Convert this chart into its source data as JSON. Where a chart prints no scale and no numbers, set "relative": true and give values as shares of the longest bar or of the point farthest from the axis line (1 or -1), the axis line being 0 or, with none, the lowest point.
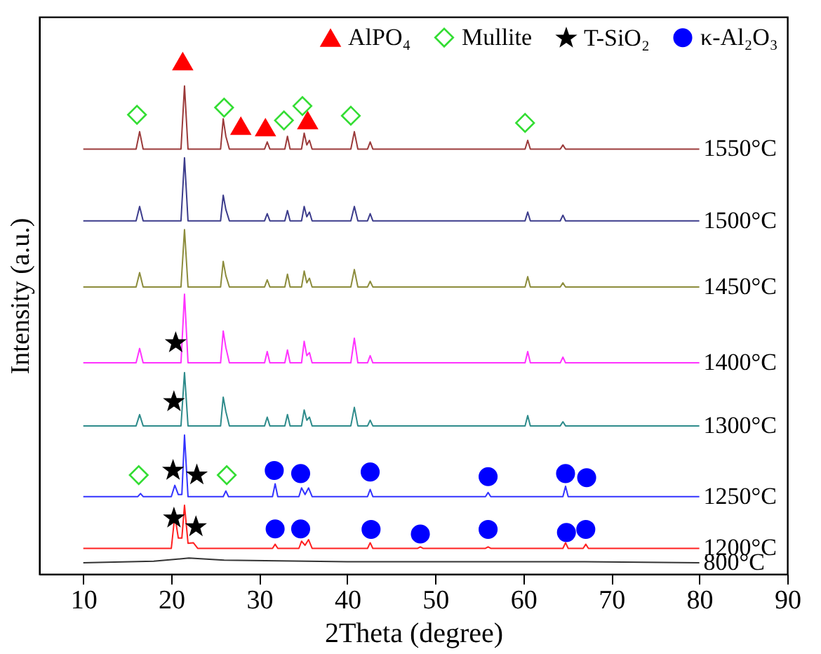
{
  "chart_data": {
    "type": "line",
    "relative": true,
    "xlabel": "2Theta (degree)",
    "ylabel": "Intensity (a.u.)",
    "xlim": [
      5,
      90
    ],
    "xticks": [
      10,
      20,
      30,
      40,
      50,
      60,
      70,
      80,
      90
    ],
    "grid": false,
    "legend": "top right",
    "line_style": "solid",
    "series": [
      {
        "name": "1550°C",
        "type": "line",
        "color": "#9b3a3a",
        "x": [
          10,
          16.0,
          16.4,
          16.8,
          21.1,
          21.5,
          21.9,
          25.6,
          25.9,
          26.2,
          26.6,
          30.6,
          30.9,
          31.2,
          32.9,
          33.2,
          33.5,
          34.8,
          35.1,
          35.4,
          35.7,
          36.0,
          40.4,
          40.8,
          41.2,
          42.3,
          42.6,
          42.9,
          60.2,
          60.5,
          60.8,
          64.2,
          64.5,
          64.8,
          80
        ],
        "values": [
          0.829,
          0.829,
          0.863,
          0.829,
          0.829,
          0.952,
          0.829,
          0.829,
          0.888,
          0.854,
          0.829,
          0.829,
          0.843,
          0.829,
          0.829,
          0.854,
          0.829,
          0.829,
          0.86,
          0.837,
          0.846,
          0.829,
          0.829,
          0.863,
          0.829,
          0.829,
          0.843,
          0.829,
          0.829,
          0.846,
          0.829,
          0.829,
          0.837,
          0.829,
          0.829
        ]
      },
      {
        "name": "1500°C",
        "type": "line",
        "color": "#3c3c8c",
        "x": [
          10,
          16.0,
          16.4,
          16.8,
          21.1,
          21.5,
          21.9,
          25.6,
          25.9,
          26.2,
          26.6,
          30.6,
          30.9,
          31.2,
          32.9,
          33.2,
          33.5,
          34.8,
          35.1,
          35.4,
          35.7,
          36.0,
          40.4,
          40.8,
          41.2,
          42.3,
          42.6,
          42.9,
          60.2,
          60.5,
          60.8,
          64.2,
          64.5,
          64.8,
          80
        ],
        "values": [
          0.689,
          0.689,
          0.717,
          0.689,
          0.689,
          0.812,
          0.689,
          0.689,
          0.739,
          0.711,
          0.689,
          0.689,
          0.703,
          0.689,
          0.689,
          0.709,
          0.689,
          0.689,
          0.717,
          0.697,
          0.706,
          0.689,
          0.689,
          0.717,
          0.689,
          0.689,
          0.703,
          0.689,
          0.689,
          0.706,
          0.689,
          0.689,
          0.7,
          0.689,
          0.689
        ]
      },
      {
        "name": "1450°C",
        "type": "line",
        "color": "#8c8c3c",
        "x": [
          10,
          16.0,
          16.4,
          16.8,
          21.1,
          21.5,
          21.9,
          25.6,
          25.9,
          26.2,
          26.6,
          30.6,
          30.9,
          31.2,
          32.9,
          33.2,
          33.5,
          34.8,
          35.1,
          35.4,
          35.7,
          36.0,
          40.4,
          40.8,
          41.2,
          42.3,
          42.6,
          42.9,
          60.2,
          60.5,
          60.8,
          64.2,
          64.5,
          64.8,
          80
        ],
        "values": [
          0.56,
          0.56,
          0.588,
          0.56,
          0.56,
          0.672,
          0.56,
          0.56,
          0.61,
          0.582,
          0.56,
          0.56,
          0.574,
          0.56,
          0.56,
          0.585,
          0.56,
          0.56,
          0.591,
          0.568,
          0.577,
          0.56,
          0.56,
          0.594,
          0.56,
          0.56,
          0.571,
          0.56,
          0.56,
          0.58,
          0.56,
          0.56,
          0.568,
          0.56,
          0.56
        ]
      },
      {
        "name": "1400°C",
        "type": "line",
        "color": "#ff33ff",
        "x": [
          10,
          16.0,
          16.4,
          16.8,
          21.1,
          21.5,
          21.9,
          25.6,
          25.9,
          26.2,
          26.6,
          30.6,
          30.9,
          31.2,
          32.9,
          33.2,
          33.5,
          34.8,
          35.1,
          35.4,
          35.7,
          36.0,
          40.4,
          40.8,
          41.2,
          42.3,
          42.6,
          42.9,
          60.2,
          60.5,
          60.8,
          64.2,
          64.5,
          64.8,
          80
        ],
        "values": [
          0.412,
          0.412,
          0.44,
          0.412,
          0.412,
          0.546,
          0.412,
          0.412,
          0.474,
          0.442,
          0.412,
          0.412,
          0.434,
          0.412,
          0.412,
          0.437,
          0.412,
          0.412,
          0.454,
          0.426,
          0.432,
          0.412,
          0.412,
          0.46,
          0.412,
          0.412,
          0.426,
          0.412,
          0.412,
          0.434,
          0.412,
          0.412,
          0.423,
          0.412,
          0.412
        ]
      },
      {
        "name": "1300°C",
        "type": "line",
        "color": "#2e8b8b",
        "x": [
          10,
          16.0,
          16.4,
          16.8,
          21.1,
          21.5,
          21.9,
          25.6,
          25.9,
          26.2,
          26.6,
          30.6,
          30.9,
          31.2,
          32.9,
          33.2,
          33.5,
          34.8,
          35.1,
          35.4,
          35.7,
          36.0,
          40.4,
          40.8,
          41.2,
          42.3,
          42.6,
          42.9,
          60.2,
          60.5,
          60.8,
          64.2,
          64.5,
          64.8,
          80
        ],
        "values": [
          0.289,
          0.289,
          0.311,
          0.289,
          0.289,
          0.393,
          0.289,
          0.289,
          0.345,
          0.317,
          0.289,
          0.289,
          0.306,
          0.289,
          0.289,
          0.311,
          0.289,
          0.289,
          0.32,
          0.3,
          0.306,
          0.289,
          0.289,
          0.325,
          0.289,
          0.289,
          0.3,
          0.289,
          0.289,
          0.309,
          0.289,
          0.289,
          0.297,
          0.289,
          0.289
        ]
      },
      {
        "name": "1250°C",
        "type": "line",
        "color": "#3333ff",
        "x": [
          10,
          16.2,
          16.5,
          16.8,
          20.0,
          20.4,
          20.8,
          21.2,
          21.5,
          21.9,
          25.9,
          26.2,
          26.5,
          31.5,
          31.8,
          32.1,
          34.5,
          34.8,
          35.2,
          35.6,
          36.0,
          42.3,
          42.6,
          42.9,
          55.7,
          56.0,
          56.3,
          64.5,
          64.8,
          65.1,
          80
        ],
        "values": [
          0.151,
          0.151,
          0.157,
          0.151,
          0.151,
          0.173,
          0.155,
          0.155,
          0.271,
          0.151,
          0.151,
          0.162,
          0.151,
          0.151,
          0.176,
          0.151,
          0.151,
          0.168,
          0.155,
          0.168,
          0.151,
          0.151,
          0.165,
          0.151,
          0.151,
          0.159,
          0.151,
          0.151,
          0.171,
          0.151,
          0.151
        ]
      },
      {
        "name": "1200°C",
        "type": "line",
        "color": "#ff2020",
        "x": [
          10,
          20.0,
          20.4,
          20.8,
          21.2,
          21.5,
          21.9,
          22.5,
          23.0,
          31.5,
          31.8,
          32.1,
          34.5,
          34.8,
          35.2,
          35.6,
          36.0,
          42.3,
          42.6,
          42.9,
          48.0,
          48.3,
          48.6,
          55.7,
          56.0,
          56.3,
          64.5,
          64.8,
          65.1,
          66.8,
          67.1,
          67.4,
          80
        ],
        "values": [
          0.05,
          0.05,
          0.114,
          0.07,
          0.07,
          0.134,
          0.06,
          0.061,
          0.05,
          0.05,
          0.058,
          0.05,
          0.05,
          0.064,
          0.056,
          0.067,
          0.05,
          0.05,
          0.061,
          0.05,
          0.05,
          0.053,
          0.05,
          0.05,
          0.053,
          0.05,
          0.05,
          0.061,
          0.05,
          0.05,
          0.058,
          0.05,
          0.05
        ]
      },
      {
        "name": "800°C",
        "type": "line",
        "color": "#333333",
        "x": [
          10,
          18,
          22,
          26,
          40,
          67,
          80
        ],
        "values": [
          0.022,
          0.025,
          0.031,
          0.027,
          0.024,
          0.024,
          0.022
        ]
      },
      {
        "name": "AlPO₄",
        "type": "scatter",
        "marker": "triangle",
        "color": "#ff0000",
        "x": [
          21.3,
          27.9,
          30.7,
          35.5
        ],
        "values": [
          1.0,
          0.874,
          0.871,
          0.885
        ]
      },
      {
        "name": "Mullite",
        "type": "scatter",
        "marker": "diamond",
        "color": "#33dd33",
        "x": [
          16.1,
          26.0,
          32.8,
          34.9,
          40.4,
          60.2,
          16.3,
          26.3
        ],
        "values": [
          0.896,
          0.91,
          0.885,
          0.913,
          0.894,
          0.88,
          0.193,
          0.193
        ]
      },
      {
        "name": "T-SiO₂",
        "type": "scatter",
        "marker": "star",
        "color": "#000000",
        "x": [
          20.5,
          20.3,
          20.2,
          22.9,
          20.3,
          22.8
        ],
        "values": [
          0.451,
          0.336,
          0.202,
          0.193,
          0.109,
          0.092
        ]
      },
      {
        "name": "κ-Al₂O₃",
        "type": "scatter",
        "marker": "circle",
        "color": "#0000ff",
        "x": [
          31.7,
          34.7,
          42.6,
          56.0,
          64.8,
          67.2,
          31.8,
          34.7,
          42.7,
          48.3,
          56.0,
          64.9,
          67.1
        ],
        "values": [
          0.202,
          0.196,
          0.199,
          0.19,
          0.196,
          0.188,
          0.088,
          0.088,
          0.087,
          0.078,
          0.087,
          0.081,
          0.087
        ]
      }
    ]
  }
}
